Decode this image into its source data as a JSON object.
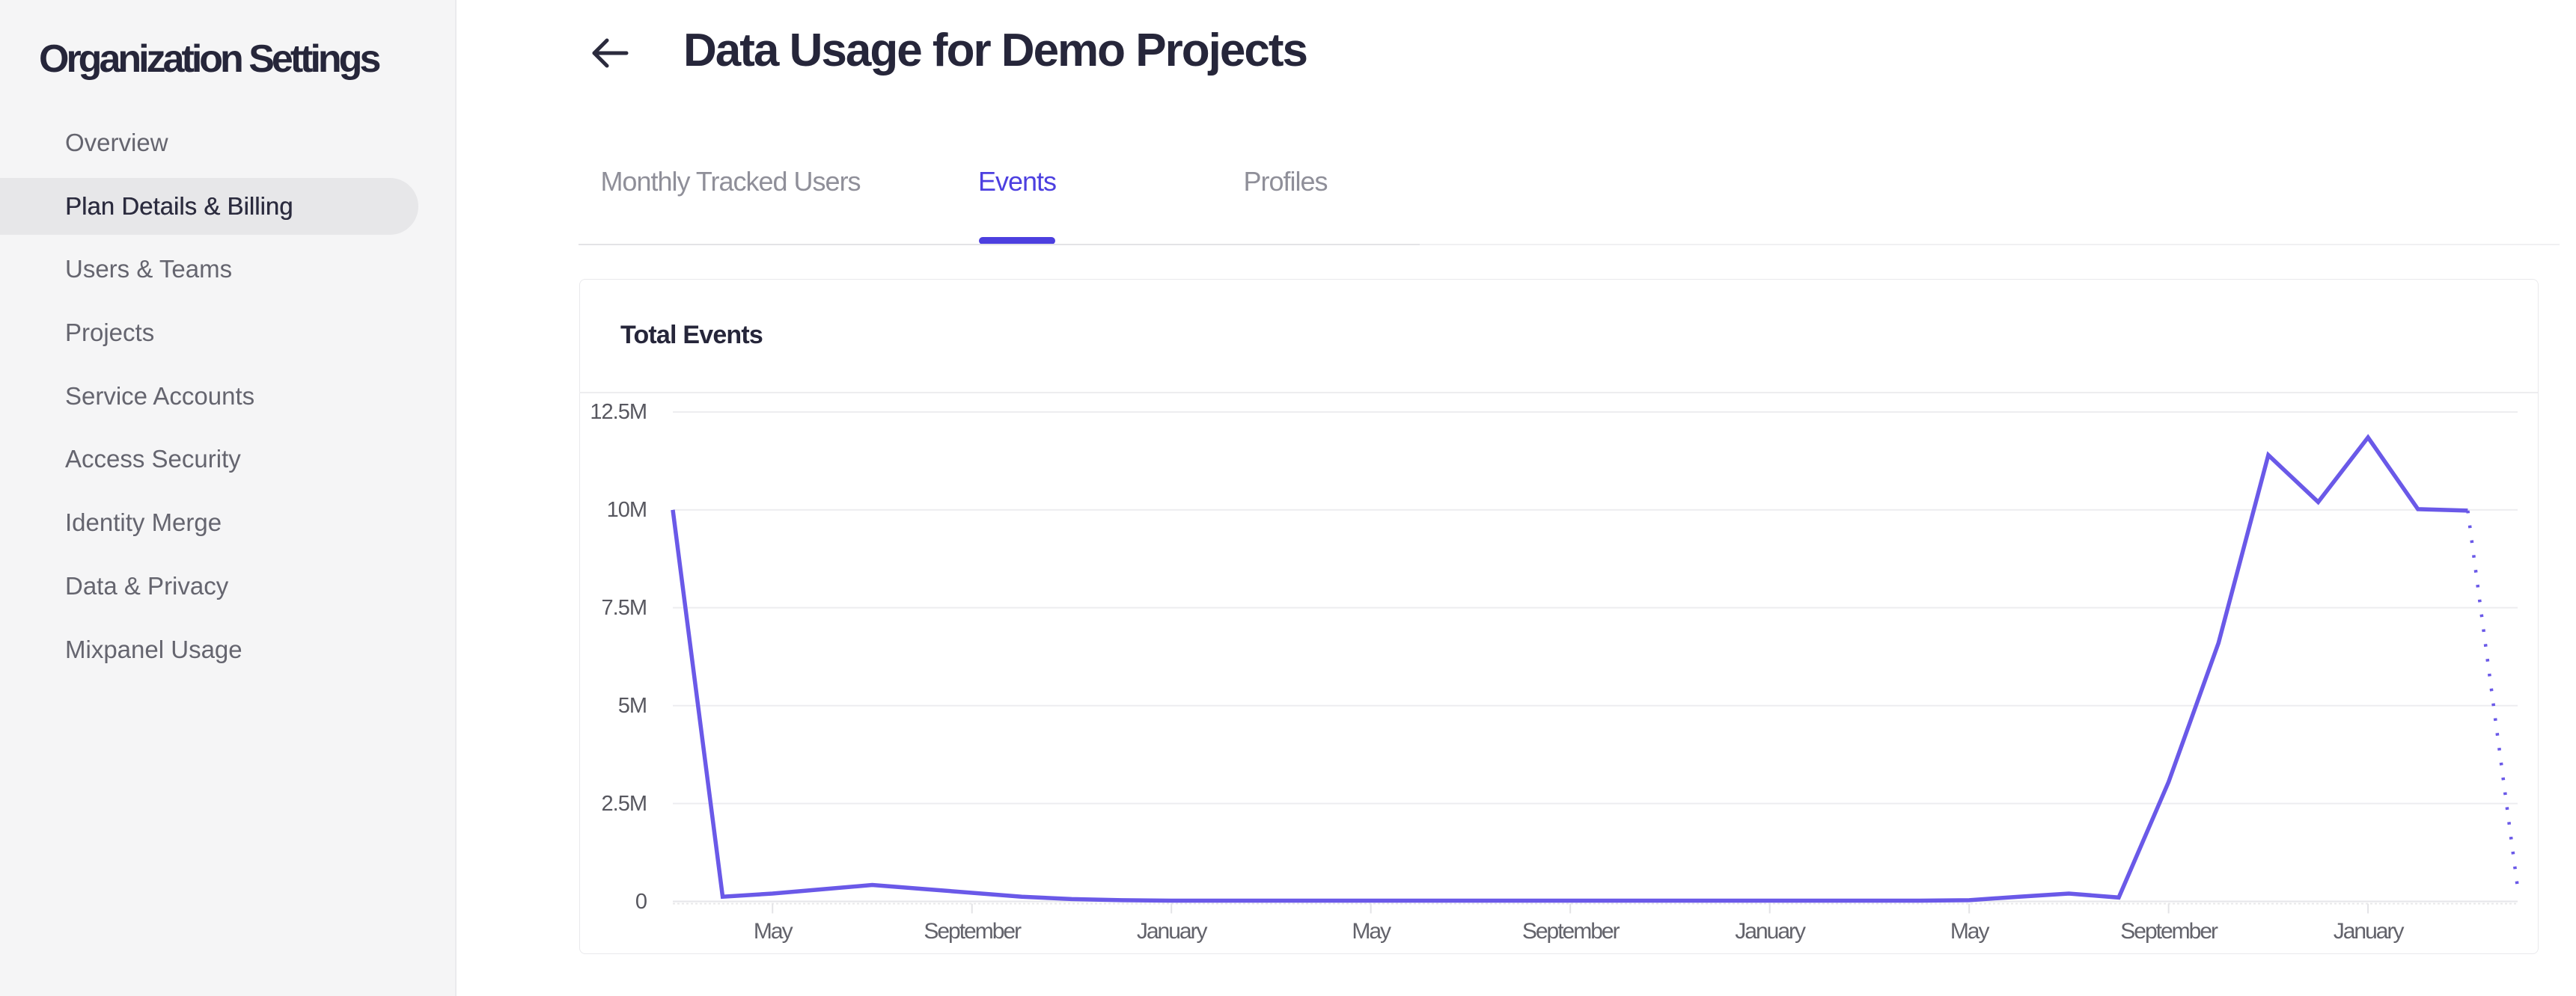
{
  "sidebar": {
    "title": "Organization Settings",
    "items": [
      {
        "label": "Overview",
        "active": false
      },
      {
        "label": "Plan Details & Billing",
        "active": true
      },
      {
        "label": "Users & Teams",
        "active": false
      },
      {
        "label": "Projects",
        "active": false
      },
      {
        "label": "Service Accounts",
        "active": false
      },
      {
        "label": "Access Security",
        "active": false
      },
      {
        "label": "Identity Merge",
        "active": false
      },
      {
        "label": "Data & Privacy",
        "active": false
      },
      {
        "label": "Mixpanel Usage",
        "active": false
      }
    ]
  },
  "header": {
    "title": "Data Usage for Demo Projects",
    "back_icon": "left-arrow"
  },
  "tabs": [
    {
      "label": "Monthly Tracked Users",
      "active": false
    },
    {
      "label": "Events",
      "active": true
    },
    {
      "label": "Profiles",
      "active": false
    }
  ],
  "chart_data": {
    "type": "line",
    "title": "Total Events",
    "ylabel": "",
    "xlabel": "",
    "ylim": [
      0,
      12500000
    ],
    "grid": true,
    "legend_position": "none",
    "y_tick_labels": [
      "12.5M",
      "10M",
      "7.5M",
      "5M",
      "2.5M",
      "0"
    ],
    "x_tick_labels": [
      "May",
      "September",
      "January",
      "May",
      "September",
      "January",
      "May",
      "September",
      "January"
    ],
    "x_tick_indices": [
      2,
      6,
      10,
      14,
      18,
      22,
      26,
      30,
      34
    ],
    "values_millions": [
      10,
      0.12,
      0.2,
      0.31,
      0.42,
      0.32,
      0.22,
      0.12,
      0.06,
      0.03,
      0.02,
      0.02,
      0.02,
      0.02,
      0.02,
      0.02,
      0.02,
      0.02,
      0.02,
      0.02,
      0.02,
      0.02,
      0.02,
      0.02,
      0.02,
      0.02,
      0.03,
      0.12,
      0.2,
      0.1,
      3.05,
      6.6,
      11.4,
      10.2,
      11.85,
      10.02,
      9.98,
      0.35
    ],
    "last_point_projected_dotted": true,
    "line_color": "#6a59e8",
    "accent_color": "#4c3fdf"
  }
}
